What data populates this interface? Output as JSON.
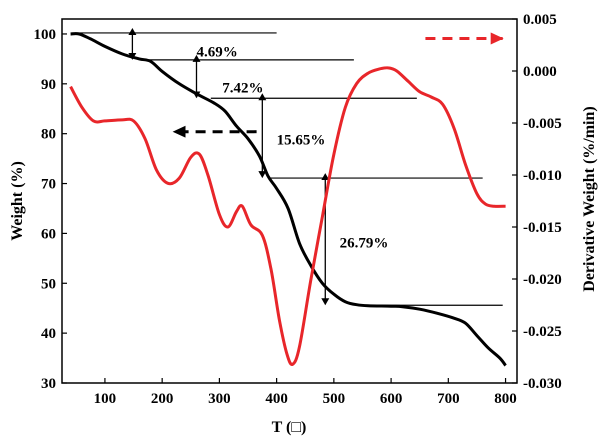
{
  "chart_data": {
    "type": "line",
    "xlabel": "T (□)",
    "ylabel_left": "Weight (%)",
    "ylabel_right": "Derivative Weight (%/min)",
    "xlim": [
      25,
      820
    ],
    "ylim_left": [
      30,
      103
    ],
    "ylim_right": [
      -0.03,
      0.005
    ],
    "xticks": [
      100,
      200,
      300,
      400,
      500,
      600,
      700,
      800
    ],
    "yticks_left": [
      30,
      40,
      50,
      60,
      70,
      80,
      90,
      100
    ],
    "yticks_right": [
      -0.03,
      -0.025,
      -0.02,
      -0.015,
      -0.01,
      -0.005,
      0.0,
      0.005
    ],
    "xtick_labels": [
      "100",
      "200",
      "300",
      "400",
      "500",
      "600",
      "700",
      "800"
    ],
    "ytick_labels_left": [
      "30",
      "40",
      "50",
      "60",
      "70",
      "80",
      "90",
      "100"
    ],
    "ytick_labels_right": [
      "-0.030",
      "-0.025",
      "-0.020",
      "-0.015",
      "-0.010",
      "-0.005",
      "0.000",
      "0.005"
    ],
    "colors": {
      "weight": "#000000",
      "derivative": "#e8262a"
    },
    "series": [
      {
        "axis": "left",
        "points": [
          [
            40,
            100
          ],
          [
            55,
            100
          ],
          [
            75,
            99
          ],
          [
            100,
            97.5
          ],
          [
            130,
            96
          ],
          [
            160,
            95
          ],
          [
            180,
            94.5
          ],
          [
            200,
            92.5
          ],
          [
            230,
            90
          ],
          [
            260,
            88
          ],
          [
            290,
            86.2
          ],
          [
            310,
            84.5
          ],
          [
            330,
            81.5
          ],
          [
            350,
            79
          ],
          [
            370,
            75.5
          ],
          [
            385,
            71.5
          ],
          [
            400,
            69
          ],
          [
            420,
            65
          ],
          [
            440,
            58
          ],
          [
            460,
            53.5
          ],
          [
            480,
            50
          ],
          [
            500,
            47.8
          ],
          [
            520,
            46.3
          ],
          [
            540,
            45.7
          ],
          [
            560,
            45.5
          ],
          [
            600,
            45.4
          ],
          [
            620,
            45.3
          ],
          [
            650,
            44.8
          ],
          [
            680,
            44
          ],
          [
            710,
            43
          ],
          [
            730,
            42
          ],
          [
            750,
            39.5
          ],
          [
            770,
            37
          ],
          [
            790,
            35
          ],
          [
            800,
            33.5
          ]
        ]
      },
      {
        "axis": "right",
        "points": [
          [
            40,
            -0.0015
          ],
          [
            60,
            -0.0035
          ],
          [
            80,
            -0.0048
          ],
          [
            100,
            -0.0048
          ],
          [
            130,
            -0.0047
          ],
          [
            150,
            -0.0048
          ],
          [
            170,
            -0.0065
          ],
          [
            190,
            -0.0095
          ],
          [
            210,
            -0.0108
          ],
          [
            230,
            -0.0103
          ],
          [
            250,
            -0.0083
          ],
          [
            265,
            -0.008
          ],
          [
            280,
            -0.01
          ],
          [
            300,
            -0.0138
          ],
          [
            315,
            -0.015
          ],
          [
            330,
            -0.0135
          ],
          [
            340,
            -0.013
          ],
          [
            355,
            -0.0148
          ],
          [
            375,
            -0.0158
          ],
          [
            390,
            -0.019
          ],
          [
            405,
            -0.024
          ],
          [
            418,
            -0.0272
          ],
          [
            428,
            -0.0282
          ],
          [
            440,
            -0.0265
          ],
          [
            460,
            -0.02
          ],
          [
            480,
            -0.014
          ],
          [
            500,
            -0.008
          ],
          [
            520,
            -0.0035
          ],
          [
            540,
            -0.0012
          ],
          [
            560,
            -0.0002
          ],
          [
            580,
            0.0002
          ],
          [
            595,
            0.0003
          ],
          [
            610,
            0.0
          ],
          [
            630,
            -0.001
          ],
          [
            650,
            -0.002
          ],
          [
            670,
            -0.0025
          ],
          [
            690,
            -0.0032
          ],
          [
            710,
            -0.0055
          ],
          [
            730,
            -0.009
          ],
          [
            750,
            -0.0118
          ],
          [
            765,
            -0.0128
          ],
          [
            780,
            -0.013
          ],
          [
            800,
            -0.013
          ]
        ]
      }
    ],
    "annotations": [
      {
        "text": "4.69%",
        "x": 260,
        "y": 96.5
      },
      {
        "text": "7.42%",
        "x": 305,
        "y": 89.3
      },
      {
        "text": "15.65%",
        "x": 400,
        "y": 78.8
      },
      {
        "text": "26.79%",
        "x": 510,
        "y": 58.2
      }
    ],
    "reference_lines": [
      {
        "y": 100.2,
        "x1": 40,
        "x2": 400
      },
      {
        "y": 94.8,
        "x1": 165,
        "x2": 535
      },
      {
        "y": 87.1,
        "x1": 285,
        "x2": 645
      },
      {
        "y": 71.1,
        "x1": 385,
        "x2": 760
      },
      {
        "y": 45.6,
        "x1": 550,
        "x2": 795
      }
    ],
    "double_arrows": [
      {
        "x": 148,
        "y1": 100.2,
        "y2": 94.8
      },
      {
        "x": 260,
        "y1": 94.8,
        "y2": 87.1
      },
      {
        "x": 375,
        "y1": 87.1,
        "y2": 71.1
      },
      {
        "x": 485,
        "y1": 71.1,
        "y2": 45.6
      }
    ],
    "series_arrows": [
      {
        "target": "left",
        "color": "#000000",
        "from": [
          365,
          80.4
        ],
        "to": [
          220,
          80.4
        ]
      },
      {
        "target": "right",
        "color": "#e8262a",
        "from": [
          660,
          99.1
        ],
        "to": [
          795,
          99.1
        ]
      }
    ]
  }
}
